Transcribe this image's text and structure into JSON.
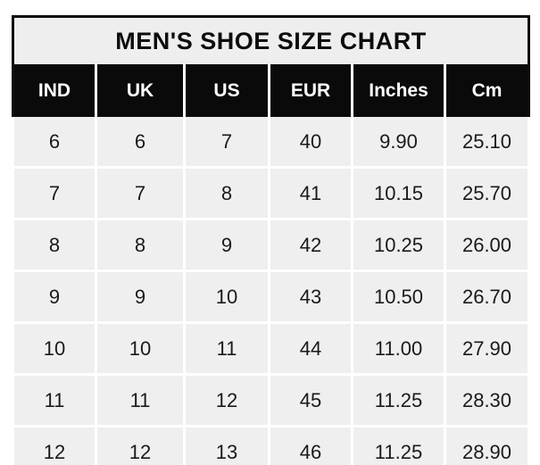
{
  "chart_data": {
    "type": "table",
    "title": "MEN'S SHOE SIZE CHART",
    "columns": [
      "IND",
      "UK",
      "US",
      "EUR",
      "Inches",
      "Cm"
    ],
    "rows": [
      [
        "6",
        "6",
        "7",
        "40",
        "9.90",
        "25.10"
      ],
      [
        "7",
        "7",
        "8",
        "41",
        "10.15",
        "25.70"
      ],
      [
        "8",
        "8",
        "9",
        "42",
        "10.25",
        "26.00"
      ],
      [
        "9",
        "9",
        "10",
        "43",
        "10.50",
        "26.70"
      ],
      [
        "10",
        "10",
        "11",
        "44",
        "11.00",
        "27.90"
      ],
      [
        "11",
        "11",
        "12",
        "45",
        "11.25",
        "28.30"
      ],
      [
        "12",
        "12",
        "13",
        "46",
        "11.25",
        "28.90"
      ]
    ]
  },
  "colors": {
    "title_background": "#eeeeee",
    "header_background": "#0a0a0a",
    "header_text": "#ffffff",
    "cell_background": "#efefef",
    "cell_text": "#1a1a1a",
    "grid_line": "#ffffff",
    "outer_border": "#0d0d0d",
    "page_background": "#ffffff"
  }
}
